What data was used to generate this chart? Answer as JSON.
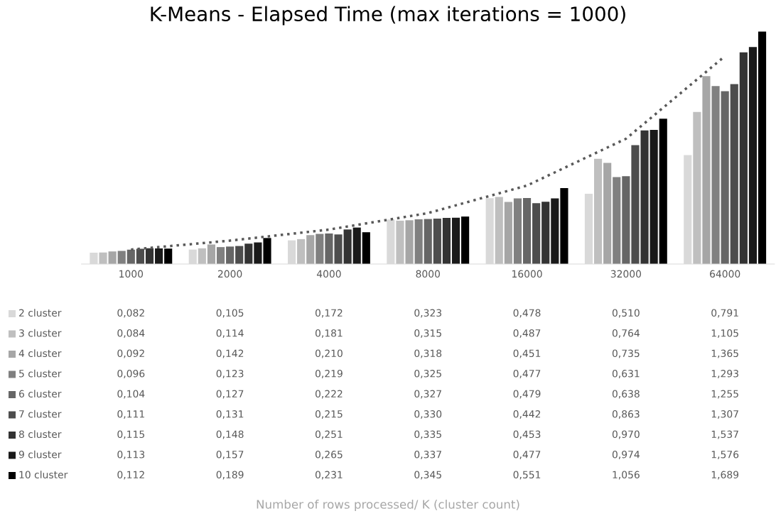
{
  "chart_data": {
    "type": "bar",
    "title": "K-Means - Elapsed Time (max iterations = 1000)",
    "annotations": [
      "Number of rows processed/ K (cluster count)"
    ],
    "legend": "bottom left",
    "categories": [
      "1000",
      "2000",
      "4000",
      "8000",
      "16000",
      "32000",
      "64000"
    ],
    "series": [
      {
        "name": "2 cluster",
        "color": "#d9d9d9",
        "values": [
          0.082,
          0.105,
          0.172,
          0.323,
          0.478,
          0.51,
          0.791
        ],
        "value_labels": [
          "0,082",
          "0,105",
          "0,172",
          "0,323",
          "0,478",
          "0,510",
          "0,791"
        ]
      },
      {
        "name": "3 cluster",
        "color": "#bfbfbf",
        "values": [
          0.084,
          0.114,
          0.181,
          0.315,
          0.487,
          0.764,
          1.105
        ],
        "value_labels": [
          "0,084",
          "0,114",
          "0,181",
          "0,315",
          "0,487",
          "0,764",
          "1,105"
        ]
      },
      {
        "name": "4 cluster",
        "color": "#a6a6a6",
        "values": [
          0.092,
          0.142,
          0.21,
          0.318,
          0.451,
          0.735,
          1.365
        ],
        "value_labels": [
          "0,092",
          "0,142",
          "0,210",
          "0,318",
          "0,451",
          "0,735",
          "1,365"
        ]
      },
      {
        "name": "5 cluster",
        "color": "#808080",
        "values": [
          0.096,
          0.123,
          0.219,
          0.325,
          0.477,
          0.631,
          1.293
        ],
        "value_labels": [
          "0,096",
          "0,123",
          "0,219",
          "0,325",
          "0,477",
          "0,631",
          "1,293"
        ]
      },
      {
        "name": "6 cluster",
        "color": "#666666",
        "values": [
          0.104,
          0.127,
          0.222,
          0.327,
          0.479,
          0.638,
          1.255
        ],
        "value_labels": [
          "0,104",
          "0,127",
          "0,222",
          "0,327",
          "0,479",
          "0,638",
          "1,255"
        ]
      },
      {
        "name": "7 cluster",
        "color": "#4d4d4d",
        "values": [
          0.111,
          0.131,
          0.215,
          0.33,
          0.442,
          0.863,
          1.307
        ],
        "value_labels": [
          "0,111",
          "0,131",
          "0,215",
          "0,330",
          "0,442",
          "0,863",
          "1,307"
        ]
      },
      {
        "name": "8 cluster",
        "color": "#333333",
        "values": [
          0.115,
          0.148,
          0.251,
          0.335,
          0.453,
          0.97,
          1.537
        ],
        "value_labels": [
          "0,115",
          "0,148",
          "0,251",
          "0,335",
          "0,453",
          "0,970",
          "1,537"
        ]
      },
      {
        "name": "9 cluster",
        "color": "#1a1a1a",
        "values": [
          0.113,
          0.157,
          0.265,
          0.337,
          0.477,
          0.974,
          1.576
        ],
        "value_labels": [
          "0,113",
          "0,157",
          "0,265",
          "0,337",
          "0,477",
          "0,974",
          "1,576"
        ]
      },
      {
        "name": "10 cluster",
        "color": "#000000",
        "values": [
          0.112,
          0.189,
          0.231,
          0.345,
          0.551,
          1.056,
          1.689
        ],
        "value_labels": [
          "0,112",
          "0,189",
          "0,231",
          "0,345",
          "0,551",
          "1,056",
          "1,689"
        ]
      },
      {
        "type": "line",
        "color": "#595959",
        "line_style": "dotted",
        "values": [
          0.105,
          0.17,
          0.25,
          0.37,
          0.57,
          0.91,
          1.51
        ]
      }
    ],
    "grid": false
  }
}
